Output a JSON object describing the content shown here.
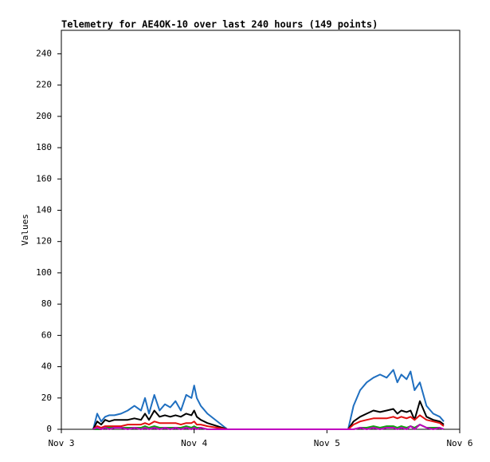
{
  "chart_data": {
    "type": "line",
    "title": "Telemetry for AE4OK-10 over last 240 hours (149 points)",
    "y_label": "Values",
    "x": [
      0.24,
      0.27,
      0.3,
      0.33,
      0.36,
      0.4,
      0.45,
      0.5,
      0.55,
      0.6,
      0.63,
      0.66,
      0.7,
      0.74,
      0.78,
      0.82,
      0.86,
      0.9,
      0.94,
      0.98,
      1.0,
      1.02,
      1.05,
      1.1,
      1.25,
      2.16,
      2.2,
      2.25,
      2.3,
      2.35,
      2.4,
      2.45,
      2.5,
      2.53,
      2.56,
      2.6,
      2.63,
      2.66,
      2.7,
      2.75,
      2.8,
      2.85,
      2.88
    ],
    "series": [
      {
        "color": "#1f6fc0",
        "values": [
          0,
          10,
          5,
          8,
          9,
          9,
          10,
          12,
          15,
          12,
          20,
          10,
          22,
          12,
          16,
          14,
          18,
          12,
          22,
          20,
          28,
          20,
          15,
          10,
          0,
          0,
          15,
          25,
          30,
          33,
          35,
          33,
          38,
          30,
          35,
          32,
          37,
          25,
          30,
          15,
          10,
          8,
          5
        ]
      },
      {
        "color": "#000000",
        "values": [
          0,
          5,
          3,
          6,
          5,
          6,
          6,
          6,
          7,
          6,
          10,
          6,
          12,
          8,
          9,
          8,
          9,
          8,
          10,
          9,
          12,
          8,
          6,
          4,
          0,
          0,
          5,
          8,
          10,
          12,
          11,
          12,
          13,
          10,
          12,
          11,
          12,
          6,
          18,
          8,
          6,
          5,
          3
        ]
      },
      {
        "color": "#e01010",
        "values": [
          0,
          2,
          1,
          2,
          2,
          2,
          2,
          3,
          3,
          3,
          4,
          3,
          5,
          4,
          4,
          4,
          4,
          3,
          4,
          4,
          5,
          3,
          3,
          2,
          0,
          0,
          3,
          5,
          6,
          7,
          7,
          7,
          8,
          7,
          8,
          7,
          8,
          6,
          9,
          6,
          5,
          4,
          2
        ]
      },
      {
        "color": "#10a010",
        "values": [
          0,
          0,
          0,
          1,
          1,
          1,
          1,
          1,
          1,
          1,
          2,
          1,
          2,
          1,
          1,
          1,
          1,
          1,
          2,
          1,
          2,
          1,
          1,
          0,
          0,
          0,
          0,
          1,
          1,
          2,
          1,
          2,
          2,
          1,
          2,
          1,
          2,
          1,
          3,
          1,
          1,
          1,
          0
        ]
      },
      {
        "color": "#c000c0",
        "values": [
          0,
          1,
          0,
          1,
          0,
          1,
          1,
          0,
          1,
          0,
          1,
          0,
          1,
          0,
          1,
          0,
          1,
          0,
          1,
          0,
          1,
          0,
          1,
          0,
          0,
          0,
          0,
          1,
          0,
          1,
          0,
          1,
          1,
          0,
          1,
          0,
          2,
          0,
          3,
          1,
          0,
          1,
          0
        ]
      }
    ],
    "xlim": [
      0,
      3
    ],
    "xticks": [
      {
        "value": 0,
        "label": "Nov 3"
      },
      {
        "value": 1,
        "label": "Nov 4"
      },
      {
        "value": 2,
        "label": "Nov 5"
      },
      {
        "value": 3,
        "label": "Nov 6"
      }
    ],
    "ylim": [
      0,
      255
    ],
    "yticks": [
      0,
      20,
      40,
      60,
      80,
      100,
      120,
      140,
      160,
      180,
      200,
      220,
      240
    ],
    "grid": false
  }
}
